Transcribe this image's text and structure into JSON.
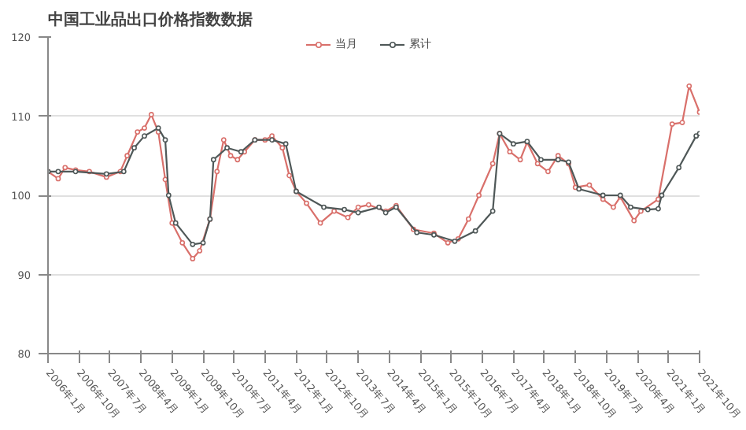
{
  "chart_data": {
    "type": "line",
    "title": "中国工业品出口价格指数数据",
    "xlim": [
      "2006-01",
      "2021-10"
    ],
    "xticks": [
      {
        "value": "2006-01",
        "label": "2006年1月"
      },
      {
        "value": "2006-10",
        "label": "2006年10月"
      },
      {
        "value": "2007-07",
        "label": "2007年7月"
      },
      {
        "value": "2008-04",
        "label": "2008年4月"
      },
      {
        "value": "2009-01",
        "label": "2009年1月"
      },
      {
        "value": "2009-10",
        "label": "2009年10月"
      },
      {
        "value": "2010-07",
        "label": "2010年7月"
      },
      {
        "value": "2011-04",
        "label": "2011年4月"
      },
      {
        "value": "2012-01",
        "label": "2012年1月"
      },
      {
        "value": "2012-10",
        "label": "2012年10月"
      },
      {
        "value": "2013-07",
        "label": "2013年7月"
      },
      {
        "value": "2014-04",
        "label": "2014年4月"
      },
      {
        "value": "2015-01",
        "label": "2015年1月"
      },
      {
        "value": "2015-10",
        "label": "2015年10月"
      },
      {
        "value": "2016-07",
        "label": "2016年7月"
      },
      {
        "value": "2017-04",
        "label": "2017年4月"
      },
      {
        "value": "2018-01",
        "label": "2018年1月"
      },
      {
        "value": "2018-10",
        "label": "2018年10月"
      },
      {
        "value": "2019-07",
        "label": "2019年7月"
      },
      {
        "value": "2020-04",
        "label": "2020年4月"
      },
      {
        "value": "2021-01",
        "label": "2021年1月"
      },
      {
        "value": "2021-10",
        "label": "2021年10月"
      }
    ],
    "ylim": [
      80,
      120
    ],
    "yticks": [
      80,
      90,
      100,
      110,
      120
    ],
    "grid": "y",
    "legend": "top",
    "marker": "circle",
    "line_style": "solid",
    "series": [
      {
        "name": "当月",
        "color": "#d9706b",
        "x": [
          "2006-01",
          "2006-04",
          "2006-06",
          "2006-09",
          "2007-01",
          "2007-06",
          "2007-10",
          "2007-12",
          "2008-03",
          "2008-05",
          "2008-07",
          "2008-09",
          "2008-11",
          "2009-01",
          "2009-04",
          "2009-07",
          "2009-09",
          "2009-12",
          "2010-02",
          "2010-04",
          "2010-06",
          "2010-08",
          "2010-10",
          "2011-01",
          "2011-04",
          "2011-06",
          "2011-09",
          "2011-11",
          "2012-01",
          "2012-04",
          "2012-08",
          "2012-12",
          "2013-04",
          "2013-07",
          "2013-10",
          "2014-03",
          "2014-06",
          "2014-11",
          "2015-05",
          "2015-09",
          "2015-12",
          "2016-03",
          "2016-06",
          "2016-10",
          "2016-12",
          "2017-03",
          "2017-06",
          "2017-08",
          "2017-11",
          "2018-02",
          "2018-05",
          "2018-08",
          "2018-10",
          "2019-02",
          "2019-06",
          "2019-09",
          "2019-11",
          "2020-03",
          "2020-05",
          "2020-10",
          "2021-02",
          "2021-05",
          "2021-07",
          "2021-10"
        ],
        "values": [
          103,
          102.1,
          103.5,
          103.2,
          103,
          102.3,
          103,
          105,
          108,
          108.5,
          110.2,
          108,
          102,
          96.5,
          94,
          92,
          93,
          97,
          103,
          107,
          105,
          104.5,
          105.5,
          107,
          107,
          107.5,
          106,
          102.5,
          100.5,
          99,
          96.5,
          98,
          97.2,
          98.5,
          98.8,
          98,
          98.7,
          95.7,
          95.2,
          94,
          94.5,
          97,
          100,
          104,
          107.8,
          105.5,
          104.5,
          106.7,
          104,
          103,
          105,
          104,
          101,
          101.3,
          99.5,
          98.5,
          99.8,
          96.8,
          98,
          99.5,
          109,
          109.2,
          113.8,
          110.5
        ]
      },
      {
        "name": "累计",
        "color": "#4f5858",
        "x": [
          "2006-01",
          "2006-04",
          "2006-09",
          "2007-06",
          "2007-11",
          "2008-02",
          "2008-05",
          "2008-09",
          "2008-11",
          "2008-12",
          "2009-02",
          "2009-07",
          "2009-10",
          "2009-12",
          "2010-01",
          "2010-05",
          "2010-09",
          "2011-01",
          "2011-06",
          "2011-10",
          "2012-01",
          "2012-09",
          "2013-03",
          "2013-07",
          "2014-01",
          "2014-03",
          "2014-06",
          "2014-12",
          "2015-05",
          "2015-11",
          "2016-05",
          "2016-10",
          "2016-12",
          "2017-04",
          "2017-08",
          "2017-12",
          "2018-05",
          "2018-08",
          "2018-11",
          "2019-06",
          "2019-11",
          "2020-02",
          "2020-07",
          "2020-10",
          "2020-11",
          "2021-04",
          "2021-09",
          "2021-10"
        ],
        "values": [
          103,
          103,
          103,
          102.7,
          103,
          106,
          107.5,
          108.5,
          107,
          100,
          96.5,
          93.8,
          94,
          97,
          104.5,
          106,
          105.5,
          107,
          107,
          106.5,
          100.5,
          98.5,
          98.2,
          97.8,
          98.5,
          97.8,
          98.5,
          95.3,
          95,
          94.2,
          95.5,
          98,
          107.8,
          106.5,
          106.8,
          104.5,
          104.5,
          104.2,
          100.8,
          100,
          100,
          98.5,
          98.2,
          98.3,
          100,
          103.5,
          107.5,
          107.8
        ]
      }
    ]
  }
}
